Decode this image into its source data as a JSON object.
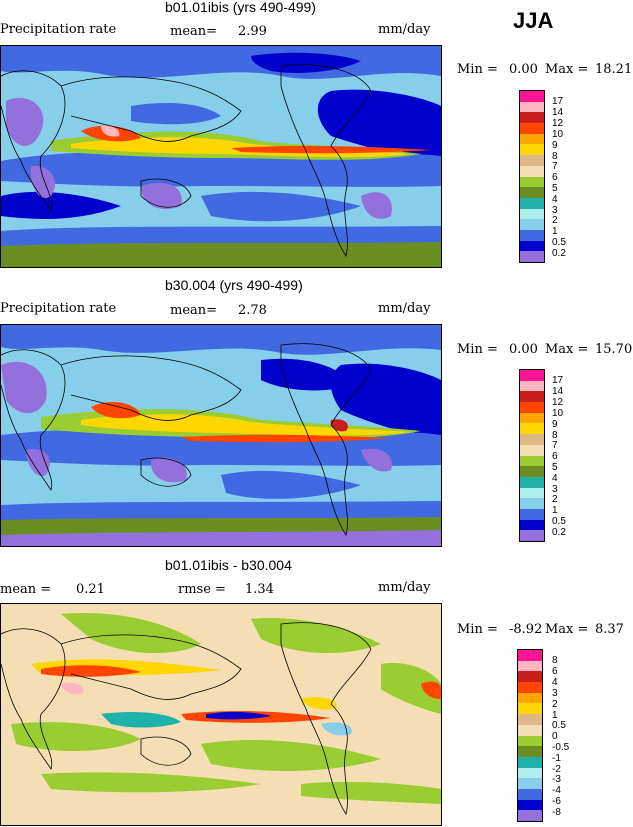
{
  "season": "JJA",
  "units": "mm/day",
  "panels": [
    {
      "title": "b01.01ibis (yrs 490-499)",
      "field_label": "Precipitation rate",
      "stat1_label": "mean=",
      "stat1_value": "2.99",
      "min_label": "Min =",
      "min_value": "0.00",
      "max_label": "Max =",
      "max_value": "18.21",
      "levels": [
        "17",
        "14",
        "12",
        "10",
        "9",
        "8",
        "7",
        "6",
        "5",
        "4",
        "3",
        "2",
        "1",
        "0.5",
        "0.2"
      ],
      "colors": [
        "#ff1493",
        "#ffb6c1",
        "#c81e1e",
        "#ff4500",
        "#ffa500",
        "#ffd700",
        "#deb887",
        "#f5deb3",
        "#9acd32",
        "#6b8e23",
        "#20b2aa",
        "#afeeee",
        "#87ceeb",
        "#4169e1",
        "#0000cd",
        "#9370db"
      ]
    },
    {
      "title": "b30.004 (yrs 490-499)",
      "field_label": "Precipitation rate",
      "stat1_label": "mean=",
      "stat1_value": "2.78",
      "min_label": "Min =",
      "min_value": "0.00",
      "max_label": "Max =",
      "max_value": "15.70",
      "levels": [
        "17",
        "14",
        "12",
        "10",
        "9",
        "8",
        "7",
        "6",
        "5",
        "4",
        "3",
        "2",
        "1",
        "0.5",
        "0.2"
      ],
      "colors": [
        "#ff1493",
        "#ffb6c1",
        "#c81e1e",
        "#ff4500",
        "#ffa500",
        "#ffd700",
        "#deb887",
        "#f5deb3",
        "#9acd32",
        "#6b8e23",
        "#20b2aa",
        "#afeeee",
        "#87ceeb",
        "#4169e1",
        "#0000cd",
        "#9370db"
      ]
    },
    {
      "title": "b01.01ibis - b30.004",
      "stat1_label": "mean =",
      "stat1_value": "0.21",
      "stat2_label": "rmse =",
      "stat2_value": "1.34",
      "min_label": "Min =",
      "min_value": "-8.92",
      "max_label": "Max =",
      "max_value": "8.37",
      "levels": [
        "8",
        "6",
        "4",
        "3",
        "2",
        "1",
        "0.5",
        "0",
        "-0.5",
        "-1",
        "-2",
        "-3",
        "-4",
        "-6",
        "-8"
      ],
      "colors": [
        "#ff1493",
        "#ffb6c1",
        "#c81e1e",
        "#ff4500",
        "#ffa500",
        "#ffd700",
        "#deb887",
        "#f5deb3",
        "#9acd32",
        "#6b8e23",
        "#20b2aa",
        "#afeeee",
        "#87ceeb",
        "#4169e1",
        "#0000cd",
        "#9370db"
      ]
    }
  ],
  "chart_data": {
    "type": "heatmap",
    "title": "JJA",
    "maps": [
      {
        "title": "b01.01ibis (yrs 490-499)",
        "variable": "Precipitation rate",
        "units": "mm/day",
        "mean": 2.99,
        "min": 0.0,
        "max": 18.21,
        "contour_levels": [
          0.2,
          0.5,
          1,
          2,
          3,
          4,
          5,
          6,
          7,
          8,
          9,
          10,
          12,
          14,
          17
        ]
      },
      {
        "title": "b30.004 (yrs 490-499)",
        "variable": "Precipitation rate",
        "units": "mm/day",
        "mean": 2.78,
        "min": 0.0,
        "max": 15.7,
        "contour_levels": [
          0.2,
          0.5,
          1,
          2,
          3,
          4,
          5,
          6,
          7,
          8,
          9,
          10,
          12,
          14,
          17
        ]
      },
      {
        "title": "b01.01ibis - b30.004",
        "units": "mm/day",
        "mean": 0.21,
        "rmse": 1.34,
        "min": -8.92,
        "max": 8.37,
        "contour_levels": [
          -8,
          -6,
          -4,
          -3,
          -2,
          -1,
          -0.5,
          0,
          0.5,
          1,
          2,
          3,
          4,
          6,
          8
        ]
      }
    ]
  }
}
